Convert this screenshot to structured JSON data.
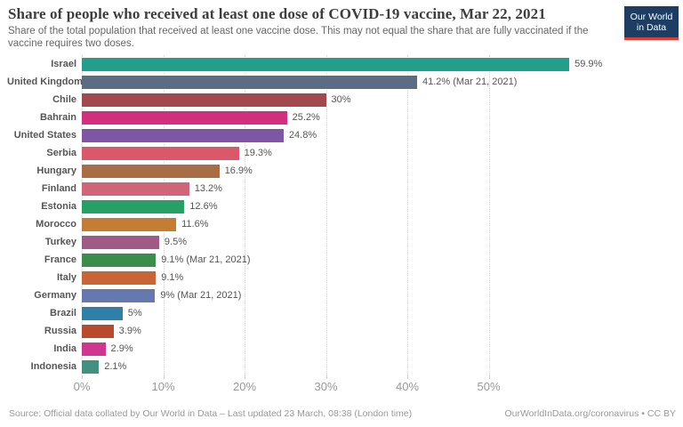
{
  "header": {
    "title": "Share of people who received at least one dose of COVID-19 vaccine, Mar 22, 2021",
    "subtitle": "Share of the total population that received at least one vaccine dose. This may not equal the share that are fully vaccinated if the vaccine requires two doses.",
    "logo": {
      "line1": "Our World",
      "line2": "in Data",
      "bg_color": "#1d3d63",
      "accent_color": "#dc3e32"
    }
  },
  "chart_data": {
    "type": "bar",
    "orientation": "horizontal",
    "title": "Share of people who received at least one dose of COVID-19 vaccine, Mar 22, 2021",
    "xlabel": "",
    "ylabel": "",
    "xlim": [
      0,
      72.5
    ],
    "grid": "dotted-vertical",
    "x_ticks": [
      {
        "value": 0,
        "label": "0%"
      },
      {
        "value": 10,
        "label": "10%"
      },
      {
        "value": 20,
        "label": "20%"
      },
      {
        "value": 30,
        "label": "30%"
      },
      {
        "value": 40,
        "label": "40%"
      },
      {
        "value": 50,
        "label": "50%"
      }
    ],
    "bars": [
      {
        "country": "Israel",
        "value": 59.9,
        "label": "59.9%",
        "color": "#239e8a"
      },
      {
        "country": "United Kingdom",
        "value": 41.2,
        "label": "41.2% (Mar 21, 2021)",
        "color": "#5b6c84"
      },
      {
        "country": "Chile",
        "value": 30,
        "label": "30%",
        "color": "#a2494f"
      },
      {
        "country": "Bahrain",
        "value": 25.2,
        "label": "25.2%",
        "color": "#d2307e"
      },
      {
        "country": "United States",
        "value": 24.8,
        "label": "24.8%",
        "color": "#7f56a5"
      },
      {
        "country": "Serbia",
        "value": 19.3,
        "label": "19.3%",
        "color": "#d9586a"
      },
      {
        "country": "Hungary",
        "value": 16.9,
        "label": "16.9%",
        "color": "#a86d45"
      },
      {
        "country": "Finland",
        "value": 13.2,
        "label": "13.2%",
        "color": "#d06579"
      },
      {
        "country": "Estonia",
        "value": 12.6,
        "label": "12.6%",
        "color": "#26a066"
      },
      {
        "country": "Morocco",
        "value": 11.6,
        "label": "11.6%",
        "color": "#c57d33"
      },
      {
        "country": "Turkey",
        "value": 9.5,
        "label": "9.5%",
        "color": "#9e5b85"
      },
      {
        "country": "France",
        "value": 9.1,
        "label": "9.1% (Mar 21, 2021)",
        "color": "#3a8e4b"
      },
      {
        "country": "Italy",
        "value": 9.1,
        "label": "9.1%",
        "color": "#c96437"
      },
      {
        "country": "Germany",
        "value": 9,
        "label": "9% (Mar 21, 2021)",
        "color": "#6678ae"
      },
      {
        "country": "Brazil",
        "value": 5,
        "label": "5%",
        "color": "#2f80a9"
      },
      {
        "country": "Russia",
        "value": 3.9,
        "label": "3.9%",
        "color": "#ba4a2d"
      },
      {
        "country": "India",
        "value": 2.9,
        "label": "2.9%",
        "color": "#d0368f"
      },
      {
        "country": "Indonesia",
        "value": 2.1,
        "label": "2.1%",
        "color": "#439081"
      }
    ]
  },
  "footer": {
    "source": "Source: Official data collated by Our World in Data – Last updated 23 March, 08:38 (London time)",
    "link": "OurWorldInData.org/coronavirus • CC BY"
  }
}
